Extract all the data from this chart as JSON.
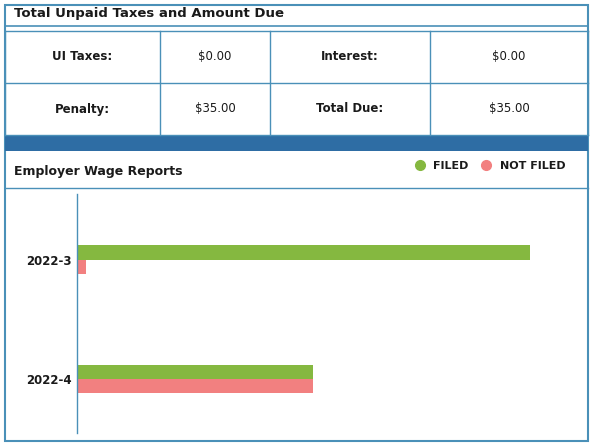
{
  "title_top": "Total Unpaid Taxes and Amount Due",
  "table_data": [
    [
      "UI Taxes:",
      "$0.00",
      "Interest:",
      "$0.00"
    ],
    [
      "Penalty:",
      "$35.00",
      "Total Due:",
      "$35.00"
    ]
  ],
  "section2_title": "Employer Wage Reports",
  "bar_categories": [
    "2022-3",
    "2022-4"
  ],
  "bar_filed_2022_3": 100,
  "bar_not_filed_2022_3": 2,
  "bar_filed_2022_4": 52,
  "bar_not_filed_2022_4": 52,
  "filed_color": "#85b840",
  "not_filed_color": "#f28080",
  "legend_filed": "FILED",
  "legend_not_filed": "NOT FILED",
  "outer_border_color": "#4a90b8",
  "divider_color": "#2e6da4",
  "table_border_color": "#4a90b8",
  "bg_color": "#ffffff",
  "title_fontsize": 9.5,
  "label_fontsize": 8.5,
  "section2_fontsize": 9,
  "bar_xlim": 110
}
